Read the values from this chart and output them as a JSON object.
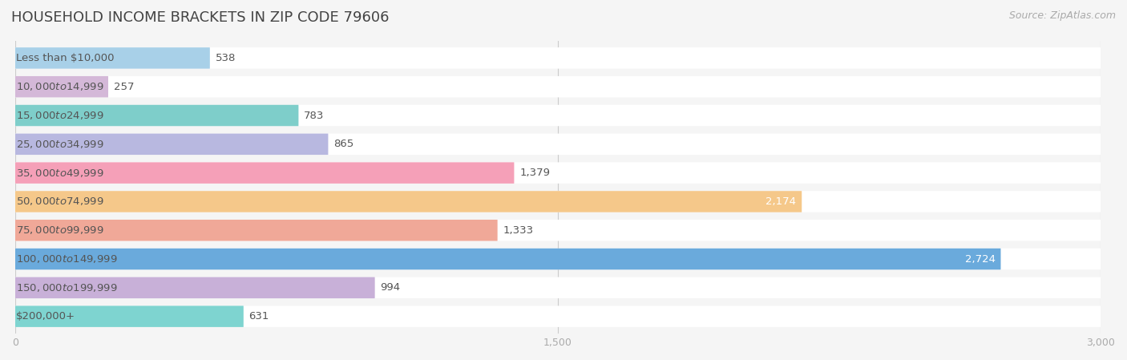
{
  "title": "HOUSEHOLD INCOME BRACKETS IN ZIP CODE 79606",
  "source": "Source: ZipAtlas.com",
  "categories": [
    "Less than $10,000",
    "$10,000 to $14,999",
    "$15,000 to $24,999",
    "$25,000 to $34,999",
    "$35,000 to $49,999",
    "$50,000 to $74,999",
    "$75,000 to $99,999",
    "$100,000 to $149,999",
    "$150,000 to $199,999",
    "$200,000+"
  ],
  "values": [
    538,
    257,
    783,
    865,
    1379,
    2174,
    1333,
    2724,
    994,
    631
  ],
  "bar_colors": [
    "#a8d0e8",
    "#d4b8d8",
    "#7ececa",
    "#b8b8e0",
    "#f5a0b8",
    "#f5c88a",
    "#f0a898",
    "#6aaadc",
    "#c8b0d8",
    "#7ed4d0"
  ],
  "xlim": [
    0,
    3000
  ],
  "xticks": [
    0,
    1500,
    3000
  ],
  "xticklabels": [
    "0",
    "1,500",
    "3,000"
  ],
  "label_color_white": [
    5,
    7
  ],
  "background_color": "#f5f5f5",
  "bar_background": "#ececec",
  "title_fontsize": 13,
  "source_fontsize": 9,
  "label_fontsize": 9.5,
  "tick_fontsize": 9
}
